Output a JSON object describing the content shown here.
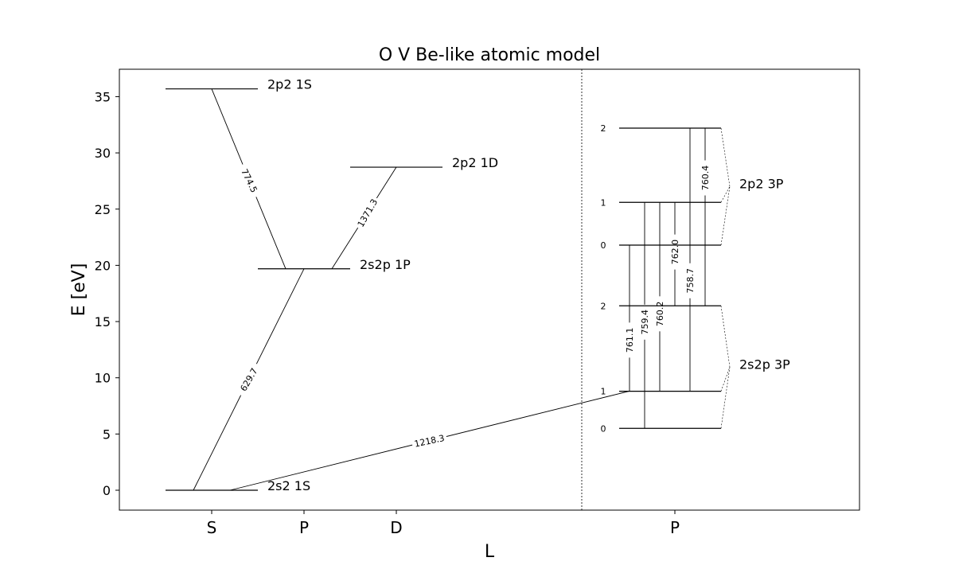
{
  "chart_data": {
    "type": "grotrian",
    "title": "O V Be-like atomic model",
    "xlabel": "L",
    "ylabel": "E [eV]",
    "ylim": [
      -1.8,
      37.5
    ],
    "yticks": [
      0,
      5,
      10,
      15,
      20,
      25,
      30,
      35
    ],
    "xticks": [
      "S",
      "P",
      "D",
      "P"
    ],
    "singlet_levels": [
      {
        "id": "2s2-1S",
        "label": "2s2 1S",
        "L": "S",
        "energy": 0.0
      },
      {
        "id": "2s2p-1P",
        "label": "2s2p 1P",
        "L": "P",
        "energy": 19.69
      },
      {
        "id": "2p2-1D",
        "label": "2p2 1D",
        "L": "D",
        "energy": 28.73
      },
      {
        "id": "2p2-1S",
        "label": "2p2 1S",
        "L": "S",
        "energy": 35.69
      }
    ],
    "triplet_terms": [
      {
        "label": "2s2p 3P",
        "L": "P",
        "levels": [
          {
            "J": "0",
            "energy": 5.5
          },
          {
            "J": "1",
            "energy": 8.8
          },
          {
            "J": "2",
            "energy": 16.4
          }
        ]
      },
      {
        "label": "2p2 3P",
        "L": "P",
        "levels": [
          {
            "J": "0",
            "energy": 21.8
          },
          {
            "J": "1",
            "energy": 25.6
          },
          {
            "J": "2",
            "energy": 32.2
          }
        ]
      }
    ],
    "transitions": [
      {
        "wavelength": "774.5",
        "from": "2s2p-1P",
        "to": "2p2-1S"
      },
      {
        "wavelength": "1371.3",
        "from": "2s2p-1P",
        "to": "2p2-1D"
      },
      {
        "wavelength": "629.7",
        "from": "2s2-1S",
        "to": "2s2p-1P"
      },
      {
        "wavelength": "1218.3",
        "from": "2s2-1S",
        "to": "2s2p 3P J=1"
      },
      {
        "wavelength": "761.1",
        "from": "2s2p 3P J=1",
        "to": "2p2 3P J=0"
      },
      {
        "wavelength": "759.4",
        "from": "2s2p 3P J=0",
        "to": "2p2 3P J=1"
      },
      {
        "wavelength": "760.2",
        "from": "2s2p 3P J=1",
        "to": "2p2 3P J=1"
      },
      {
        "wavelength": "762.0",
        "from": "2s2p 3P J=2",
        "to": "2p2 3P J=1"
      },
      {
        "wavelength": "758.7",
        "from": "2s2p 3P J=1",
        "to": "2p2 3P J=2"
      },
      {
        "wavelength": "760.4",
        "from": "2s2p 3P J=2",
        "to": "2p2 3P J=2"
      }
    ]
  }
}
